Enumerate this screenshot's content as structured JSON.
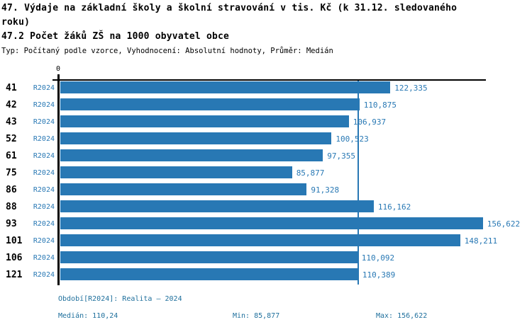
{
  "header": {
    "title": "47. Výdaje na základní školy a školní stravování v tis. Kč (k 31.12. sledovaného roku)",
    "subtitle": "47.2 Počet žáků ZŠ na 1000 obyvatel obce",
    "meta": "Typ: Počítaný podle vzorce, Vyhodnocení: Absolutní hodnoty, Průměr: Medián"
  },
  "axis": {
    "origin_label": "0"
  },
  "chart_data": {
    "type": "bar",
    "orientation": "horizontal",
    "title": "47.2 Počet žáků ZŠ na 1000 obyvatel obce",
    "categories": [
      "41",
      "42",
      "43",
      "52",
      "61",
      "75",
      "86",
      "88",
      "93",
      "101",
      "106",
      "121"
    ],
    "series_label": "R2024",
    "values": [
      122.335,
      110.875,
      106.937,
      100.523,
      97.355,
      85.877,
      91.328,
      116.162,
      156.622,
      148.211,
      110.092,
      110.389
    ],
    "value_labels": [
      "122,335",
      "110,875",
      "106,937",
      "100,523",
      "97,355",
      "85,877",
      "91,328",
      "116,162",
      "156,622",
      "148,211",
      "110,092",
      "110,389"
    ],
    "xlim": [
      0,
      158
    ],
    "grid": false,
    "legend": false,
    "median_value": 110.2405,
    "median_line": true,
    "bar_color": "#2878b4",
    "median_line_color": "#2878b4"
  },
  "footer": {
    "period_line": "Období[R2024]: Realita – 2024",
    "median_label": "Medián: 110,24",
    "min_label": "Min: 85,877",
    "max_label": "Max: 156,622"
  },
  "colors": {
    "bar": "#2878b4",
    "value_text": "#2878b4",
    "footer_text": "#1e6f9c",
    "axis": "#000000",
    "background": "#ffffff"
  }
}
